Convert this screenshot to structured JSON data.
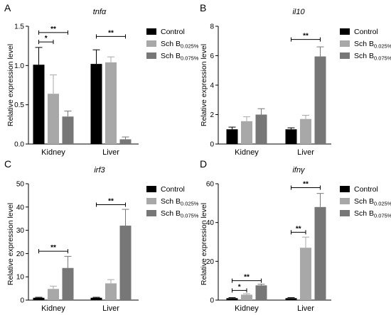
{
  "legend_colors": [
    "#000000",
    "#a8a8a8",
    "#777777"
  ],
  "chart_data": [
    {
      "type": "bar",
      "panel": "A",
      "title": "tnfα",
      "ylabel": "Relative expression level",
      "categories": [
        "Kidney",
        "Liver"
      ],
      "ylim": [
        0,
        1.5
      ],
      "yticks": [
        0.0,
        0.5,
        1.0,
        1.5
      ],
      "ytick_labels": [
        "0.0",
        "0.5",
        "1.0",
        "1.5"
      ],
      "series": [
        {
          "name": "Control",
          "name_sub": "",
          "values": [
            1.01,
            1.02
          ],
          "errors": [
            0.22,
            0.18
          ]
        },
        {
          "name": "Sch B",
          "name_sub": "0.025%",
          "values": [
            0.64,
            1.04
          ],
          "errors": [
            0.24,
            0.07
          ]
        },
        {
          "name": "Sch B",
          "name_sub": "0.075%",
          "values": [
            0.35,
            0.06
          ],
          "errors": [
            0.07,
            0.03
          ]
        }
      ],
      "significance": [
        {
          "category": 0,
          "from": 0,
          "to": 1,
          "y": 1.3,
          "label": "*"
        },
        {
          "category": 0,
          "from": 0,
          "to": 2,
          "y": 1.42,
          "label": "**"
        },
        {
          "category": 1,
          "from": 0,
          "to": 2,
          "y": 1.37,
          "label": "**"
        }
      ]
    },
    {
      "type": "bar",
      "panel": "B",
      "title": "il10",
      "ylabel": "Relative expression level",
      "categories": [
        "Kidney",
        "Liver"
      ],
      "ylim": [
        0,
        8
      ],
      "yticks": [
        0,
        2,
        4,
        6,
        8
      ],
      "ytick_labels": [
        "0",
        "2",
        "4",
        "6",
        "8"
      ],
      "series": [
        {
          "name": "Control",
          "name_sub": "",
          "values": [
            1.0,
            1.0
          ],
          "errors": [
            0.15,
            0.1
          ]
        },
        {
          "name": "Sch B",
          "name_sub": "0.025%",
          "values": [
            1.55,
            1.7
          ],
          "errors": [
            0.3,
            0.25
          ]
        },
        {
          "name": "Sch B",
          "name_sub": "0.075%",
          "values": [
            2.0,
            5.95
          ],
          "errors": [
            0.4,
            0.65
          ]
        }
      ],
      "significance": [
        {
          "category": 1,
          "from": 0,
          "to": 2,
          "y": 7.1,
          "label": "**"
        }
      ]
    },
    {
      "type": "bar",
      "panel": "C",
      "title": "irf3",
      "ylabel": "Relative expression level",
      "categories": [
        "Kidney",
        "Liver"
      ],
      "ylim": [
        0,
        50
      ],
      "yticks": [
        0,
        10,
        20,
        30,
        40,
        50
      ],
      "ytick_labels": [
        "0",
        "10",
        "20",
        "30",
        "40",
        "50"
      ],
      "series": [
        {
          "name": "Control",
          "name_sub": "",
          "values": [
            1.0,
            1.0
          ],
          "errors": [
            0.2,
            0.2
          ]
        },
        {
          "name": "Sch B",
          "name_sub": "0.025%",
          "values": [
            4.8,
            7.2
          ],
          "errors": [
            1.2,
            1.6
          ]
        },
        {
          "name": "Sch B",
          "name_sub": "0.075%",
          "values": [
            13.8,
            32.0
          ],
          "errors": [
            5.0,
            7.0
          ]
        }
      ],
      "significance": [
        {
          "category": 0,
          "from": 0,
          "to": 2,
          "y": 21.0,
          "label": "**"
        },
        {
          "category": 1,
          "from": 0,
          "to": 2,
          "y": 41.0,
          "label": "**"
        }
      ]
    },
    {
      "type": "bar",
      "panel": "D",
      "title": "ifnγ",
      "ylabel": "Relative expression level",
      "categories": [
        "Kidney",
        "Liver"
      ],
      "ylim": [
        0,
        60
      ],
      "yticks": [
        0,
        20,
        40,
        60
      ],
      "ytick_labels": [
        "0",
        "20",
        "40",
        "60"
      ],
      "series": [
        {
          "name": "Control",
          "name_sub": "",
          "values": [
            1.0,
            1.0
          ],
          "errors": [
            0.3,
            0.3
          ]
        },
        {
          "name": "Sch B",
          "name_sub": "0.025%",
          "values": [
            2.8,
            27.0
          ],
          "errors": [
            0.5,
            5.5
          ]
        },
        {
          "name": "Sch B",
          "name_sub": "0.075%",
          "values": [
            7.6,
            48.0
          ],
          "errors": [
            0.6,
            7.0
          ]
        }
      ],
      "significance": [
        {
          "category": 0,
          "from": 0,
          "to": 1,
          "y": 5.0,
          "label": "*"
        },
        {
          "category": 0,
          "from": 0,
          "to": 2,
          "y": 10.0,
          "label": "**"
        },
        {
          "category": 1,
          "from": 0,
          "to": 1,
          "y": 35.0,
          "label": "**"
        },
        {
          "category": 1,
          "from": 0,
          "to": 2,
          "y": 58.0,
          "label": "**"
        }
      ]
    }
  ]
}
